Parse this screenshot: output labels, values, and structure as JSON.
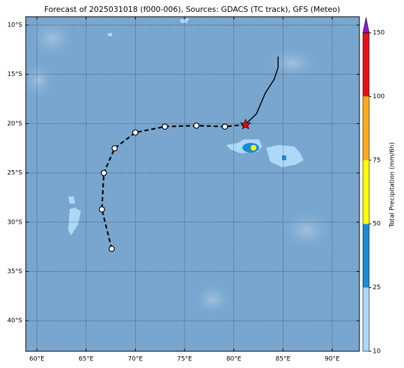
{
  "chart_data": {
    "type": "track",
    "title": "Forecast of 2025031018 (f000-006), Sources: GDACS (TC track), GFS (Meteo)",
    "xlim": [
      58.87,
      92.76
    ],
    "ylim": [
      -43.1,
      -9.15
    ],
    "xticks": [
      {
        "value": 60,
        "label": "60°E"
      },
      {
        "value": 65,
        "label": "65°E"
      },
      {
        "value": 70,
        "label": "70°E"
      },
      {
        "value": 75,
        "label": "75°E"
      },
      {
        "value": 80,
        "label": "80°E"
      },
      {
        "value": 85,
        "label": "85°E"
      },
      {
        "value": 90,
        "label": "90°E"
      }
    ],
    "yticks": [
      {
        "value": -10,
        "label": "10°S"
      },
      {
        "value": -15,
        "label": "15°S"
      },
      {
        "value": -20,
        "label": "20°S"
      },
      {
        "value": -25,
        "label": "25°S"
      },
      {
        "value": -30,
        "label": "30°S"
      },
      {
        "value": -35,
        "label": "35°S"
      },
      {
        "value": -40,
        "label": "40°S"
      }
    ],
    "grid": true,
    "observed": {
      "color": "#000000",
      "lon": [
        84.5,
        84.5,
        84.1,
        83.2,
        82.3,
        81.2
      ],
      "lat": [
        -13.2,
        -14.3,
        -15.5,
        -16.9,
        -19.0,
        -20.05
      ]
    },
    "forecast": {
      "color": "#000000",
      "lon": [
        81.2,
        79.1,
        76.2,
        73.0,
        70.0,
        67.9,
        66.8,
        66.6,
        67.6
      ],
      "lat": [
        -20.1,
        -20.3,
        -20.2,
        -20.3,
        -20.9,
        -22.5,
        -25.0,
        -28.7,
        -32.7
      ]
    },
    "current_color": "#ff0000",
    "colorbar": {
      "label": "Total Precipitation (mm/6h)",
      "levels": [
        10,
        25,
        50,
        75,
        100,
        150
      ],
      "colors": [
        "#aed8f7",
        "#1a8bd6",
        "#ffff00",
        "#ffaa1a",
        "#e8101a"
      ],
      "extend_color": "#8a1ad6"
    }
  }
}
